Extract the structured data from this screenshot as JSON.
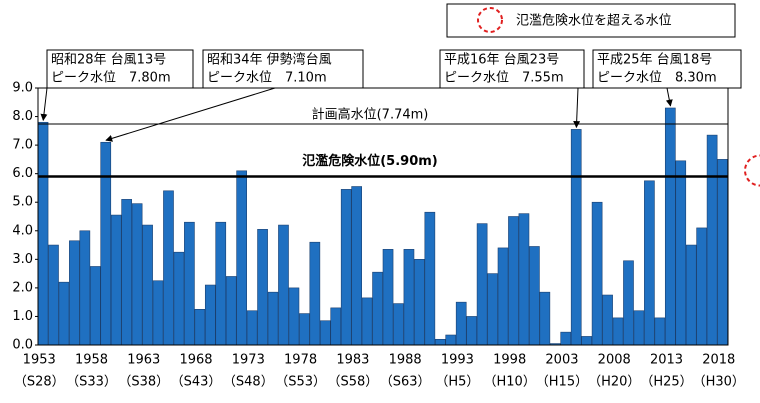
{
  "chart_data": {
    "type": "bar",
    "years_start_note": null,
    "x": [
      1953,
      1954,
      1955,
      1956,
      1957,
      1958,
      1959,
      1960,
      1961,
      1962,
      1963,
      1964,
      1965,
      1966,
      1967,
      1968,
      1969,
      1970,
      1971,
      1972,
      1973,
      1974,
      1975,
      1976,
      1977,
      1978,
      1979,
      1980,
      1981,
      1982,
      1983,
      1984,
      1985,
      1986,
      1987,
      1988,
      1989,
      1990,
      1991,
      1992,
      1993,
      1994,
      1995,
      1996,
      1997,
      1998,
      1999,
      2000,
      2001,
      2002,
      2003,
      2004,
      2005,
      2006,
      2007,
      2008,
      2009,
      2010,
      2011,
      2012,
      2013,
      2014,
      2015,
      2016,
      2017,
      2018
    ],
    "values": [
      7.8,
      3.5,
      2.2,
      3.65,
      4.0,
      2.75,
      7.1,
      4.55,
      5.1,
      4.95,
      4.2,
      2.25,
      5.4,
      3.25,
      4.3,
      1.25,
      2.1,
      4.3,
      2.4,
      6.1,
      1.2,
      4.05,
      1.85,
      4.2,
      2.0,
      1.1,
      3.6,
      0.85,
      1.3,
      5.45,
      5.55,
      1.65,
      2.55,
      3.35,
      1.45,
      3.35,
      3.0,
      4.65,
      0.2,
      0.35,
      1.5,
      1.0,
      4.25,
      2.5,
      3.4,
      4.5,
      4.6,
      3.45,
      1.85,
      0.05,
      0.45,
      7.55,
      0.3,
      5.0,
      1.75,
      0.95,
      2.95,
      1.2,
      5.75,
      0.95,
      8.3,
      6.45,
      3.5,
      4.1,
      7.35,
      6.5
    ],
    "color": "#1f70c1",
    "xticks": [
      1953,
      1958,
      1963,
      1968,
      1973,
      1978,
      1983,
      1988,
      1993,
      1998,
      2003,
      2008,
      2013,
      2018
    ],
    "era_labels": [
      "（S28）",
      "（S33）",
      "（S38）",
      "（S43）",
      "（S48）",
      "（S53）",
      "（S58）",
      "（S63）",
      "（H5）",
      "（H10）",
      "（H15）",
      "（H20）",
      "（H25）",
      "（H30）"
    ],
    "ylim": [
      0,
      9
    ],
    "yticks": [
      {
        "value": 0,
        "label": "0.0"
      },
      {
        "value": 1,
        "label": "1.0"
      },
      {
        "value": 2,
        "label": "2.0"
      },
      {
        "value": 3,
        "label": "3.0"
      },
      {
        "value": 4,
        "label": "4.0"
      },
      {
        "value": 5,
        "label": "5.0"
      },
      {
        "value": 6,
        "label": "6.0"
      },
      {
        "value": 7,
        "label": "7.0"
      },
      {
        "value": 8,
        "label": "8.0"
      },
      {
        "value": 9,
        "label": "9.0"
      }
    ],
    "reference_lines": [
      {
        "value": 7.74,
        "label": "計画高水位(7.74m)"
      },
      {
        "value": 5.9,
        "label": "氾濫危険水位(5.90m)"
      }
    ],
    "annotations": [
      {
        "x": 1953,
        "lines": [
          "昭和28年 台風13号",
          "ピーク水位　7.80m"
        ]
      },
      {
        "x": 1959,
        "lines": [
          "昭和34年 伊勢湾台風",
          "ピーク水位　7.10m"
        ]
      },
      {
        "x": 2004,
        "lines": [
          "平成16年 台風23号",
          "ピーク水位　7.55m"
        ]
      },
      {
        "x": 2013,
        "lines": [
          "平成25年 台風18号",
          "ピーク水位　8.30m"
        ]
      }
    ],
    "legend": {
      "label": "氾濫危険水位を超える水位",
      "color": "#e02020"
    }
  }
}
